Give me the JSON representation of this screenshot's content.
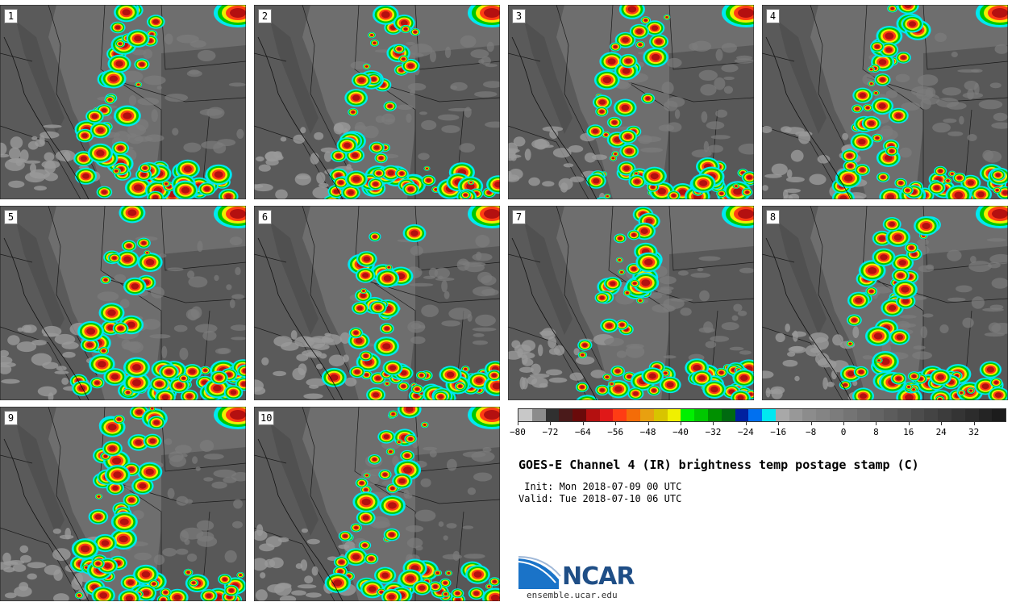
{
  "panels": [
    {
      "label": "1"
    },
    {
      "label": "2"
    },
    {
      "label": "3"
    },
    {
      "label": "4"
    },
    {
      "label": "5"
    },
    {
      "label": "6"
    },
    {
      "label": "7"
    },
    {
      "label": "8"
    },
    {
      "label": "9"
    },
    {
      "label": "10"
    }
  ],
  "colorbar": {
    "colors": [
      "#c8c8c8",
      "#8c8c8c",
      "#303030",
      "#4a1a1a",
      "#6a0a0a",
      "#b41010",
      "#e01818",
      "#ff3c14",
      "#f46c08",
      "#e8a010",
      "#d8c400",
      "#f0f000",
      "#00f000",
      "#00c800",
      "#009000",
      "#006a10",
      "#0020a0",
      "#0070f0",
      "#00e8f0",
      "#a8a8a8",
      "#989898",
      "#8c8c8c",
      "#848484",
      "#7c7c7c",
      "#747474",
      "#6c6c6c",
      "#646464",
      "#5c5c5c",
      "#545454",
      "#4c4c4c",
      "#444444",
      "#3c3c3c",
      "#343434",
      "#2c2c2c",
      "#242424",
      "#1c1c1c"
    ],
    "ticks": [
      "−80",
      "−72",
      "−64",
      "−56",
      "−48",
      "−40",
      "−32",
      "−24",
      "−16",
      "−8",
      "0",
      "8",
      "16",
      "24",
      "32"
    ]
  },
  "title": "GOES-E Channel 4 (IR) brightness temp postage stamp (C)",
  "init": " Init: Mon 2018-07-09 00 UTC",
  "valid": "Valid: Tue 2018-07-10 06 UTC",
  "logo": {
    "text": "NCAR",
    "url": "ensemble.ucar.edu"
  }
}
